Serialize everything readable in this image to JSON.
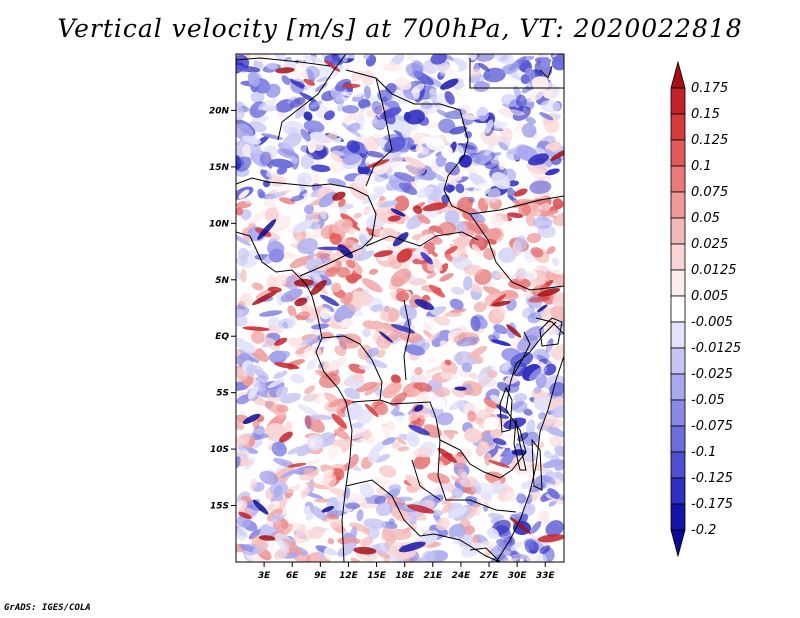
{
  "title": "Vertical velocity [m/s] at 700hPa, VT: 2020022818",
  "credit": "GrADS: IGES/COLA",
  "lat_labels": [
    "20N",
    "15N",
    "10N",
    "5N",
    "EQ",
    "5S",
    "10S",
    "15S"
  ],
  "lon_labels": [
    "3E",
    "6E",
    "9E",
    "12E",
    "15E",
    "18E",
    "21E",
    "24E",
    "27E",
    "30E",
    "33E"
  ],
  "colorbar": {
    "labels": [
      "0.175",
      "0.15",
      "0.125",
      "0.1",
      "0.075",
      "0.05",
      "0.025",
      "0.0125",
      "0.005",
      "-0.005",
      "-0.0125",
      "-0.025",
      "-0.05",
      "-0.075",
      "-0.1",
      "-0.125",
      "-0.175",
      "-0.2"
    ],
    "colors": [
      "#a50f15",
      "#c4222a",
      "#d43a3a",
      "#e05a5a",
      "#e87a7a",
      "#f09a9a",
      "#f5b8b8",
      "#fad4d4",
      "#fdecec",
      "#ffffff",
      "#e2e2fb",
      "#c6c6f5",
      "#a8a8ef",
      "#8a8ae6",
      "#6c6cdc",
      "#4e4ed0",
      "#3030c0",
      "#1414a8",
      "#0b0b96"
    ]
  },
  "palette": {
    "red": "#c62828",
    "blue": "#3f3fd0",
    "white": "#ffffff"
  },
  "chart_data": {
    "type": "heatmap",
    "title": "Vertical velocity [m/s] at 700hPa, VT: 2020022818",
    "variable": "vertical velocity",
    "units": "m/s",
    "level": "700hPa",
    "valid_time": "2020022818",
    "lon_range": [
      0,
      35
    ],
    "lat_range": [
      -20,
      25
    ],
    "contour_levels": [
      -0.2,
      -0.175,
      -0.125,
      -0.1,
      -0.075,
      -0.05,
      -0.025,
      -0.0125,
      -0.005,
      0.005,
      0.0125,
      0.025,
      0.05,
      0.075,
      0.1,
      0.125,
      0.15,
      0.175
    ]
  }
}
